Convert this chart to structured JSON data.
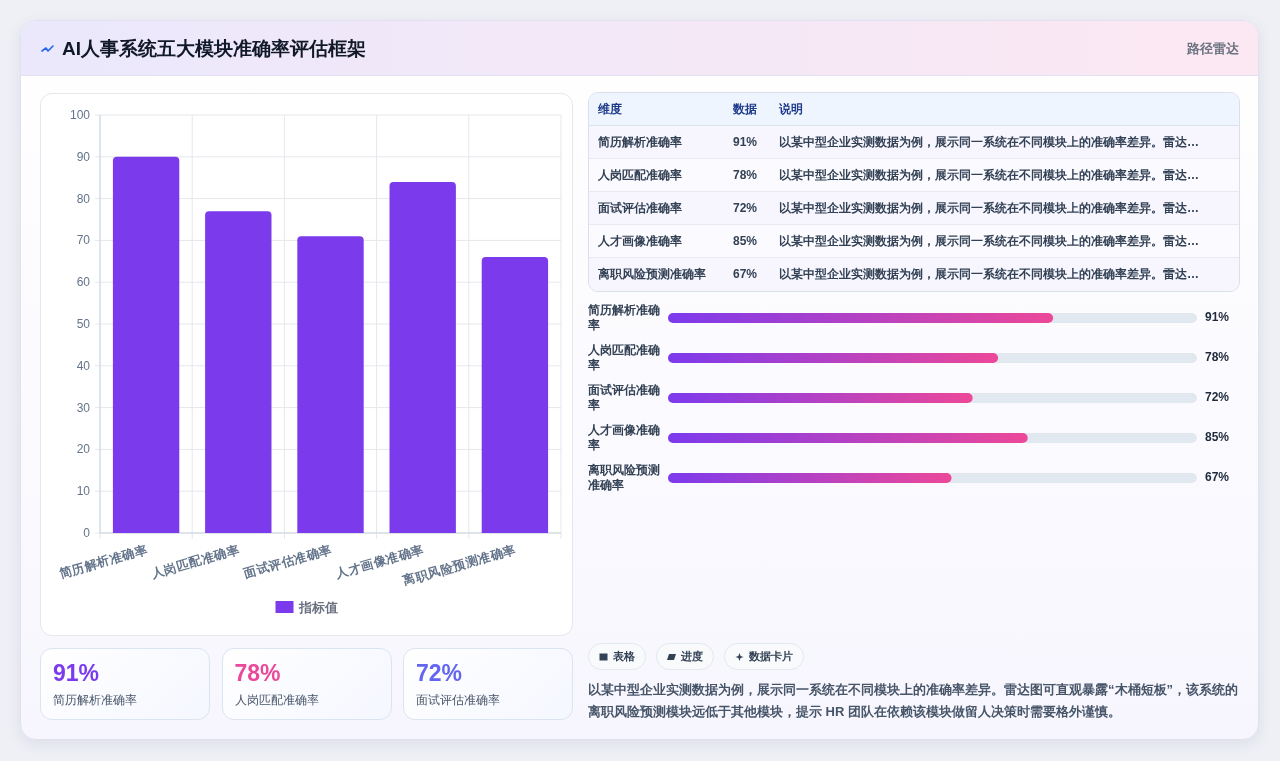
{
  "chart_data": [
    {
      "type": "other",
      "title": "AI人事系统五大模块准确率评估框架",
      "subtitle": "路径雷达"
    },
    {
      "type": "bar",
      "categories": [
        "简历解析准确率",
        "人岗匹配准确率",
        "面试评估准确率",
        "人才画像准确率",
        "离职风险预测准确率"
      ],
      "series": [
        {
          "name": "指标值",
          "color": "#7c3aed",
          "values": [
            90,
            77,
            71,
            84,
            66
          ]
        }
      ],
      "ylim": [
        0,
        100
      ],
      "yticks": [
        0,
        10,
        20,
        30,
        40,
        50,
        60,
        70,
        80,
        90,
        100
      ],
      "grid": true,
      "legend": "bottom"
    },
    {
      "type": "bar",
      "orientation": "horizontal",
      "categories": [
        "简历解析准确率",
        "人岗匹配准确率",
        "面试评估准确率",
        "人才画像准确率",
        "离职风险预测准确率"
      ],
      "values": [
        91,
        78,
        72,
        85,
        67
      ],
      "value_labels": [
        "91%",
        "78%",
        "72%",
        "85%",
        "67%"
      ],
      "xlim": [
        0,
        125
      ],
      "tick_labels": "y",
      "annotations": [
        "维度",
        "数据",
        "说明",
        "以某中型企业实测数据为例，展示同一系统在不同模块上的准确率差异。雷达…",
        "以某中型企业实测数据为例，展示同一系统在不同模块上的准确率差异。雷达…",
        "以某中型企业实测数据为例，展示同一系统在不同模块上的准确率差异。雷达…",
        "以某中型企业实测数据为例，展示同一系统在不同模块上的准确率差异。雷达…",
        "以某中型企业实测数据为例，展示同一系统在不同模块上的准确率差异。雷达…"
      ]
    },
    {
      "type": "other",
      "categories": [
        "简历解析准确率",
        "人岗匹配准确率",
        "面试评估准确率"
      ],
      "value_labels": [
        "91%",
        "78%",
        "72%"
      ]
    },
    {
      "type": "other",
      "categories": [
        "表格",
        "进度",
        "数据卡片"
      ],
      "annotations": [
        "以某中型企业实测数据为例，展示同一系统在不同模块上的准确率差异。雷达图可直观暴露“木桶短板”，该系统的离职风险预测模块远低于其他模块，提示 HR 团队在依赖该模块做留人决策时需要格外谨慎。"
      ]
    }
  ]
}
